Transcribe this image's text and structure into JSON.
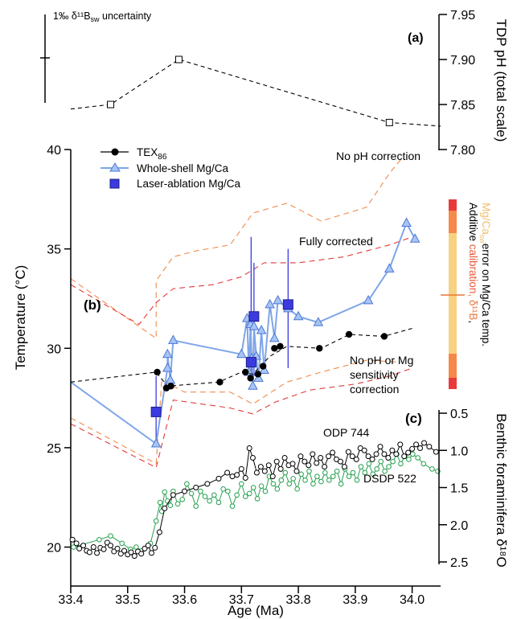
{
  "chart_data": [
    {
      "panel": "(a)",
      "type": "line",
      "ylabel": "TDP pH (total scale)",
      "ylim": [
        7.8,
        7.95
      ],
      "yticks": [
        "7.95",
        "7.90",
        "7.85",
        "7.80"
      ],
      "uncertainty_label": "1‰ δ¹¹B",
      "uncertainty_sub": "sw",
      "uncertainty_tail": " uncertainty",
      "series": [
        {
          "dash_x": [
            33.4,
            33.47,
            33.59,
            33.96,
            34.05
          ],
          "dash_y": [
            7.845,
            7.85,
            7.9,
            7.83,
            7.826
          ],
          "x": [
            33.47,
            33.59,
            33.96
          ],
          "y": [
            7.85,
            7.9,
            7.83
          ]
        }
      ]
    },
    {
      "panel": "(b)",
      "type": "line",
      "ylabel": "Temperature (°C)",
      "ylim": [
        18,
        40
      ],
      "yticks": [
        "40",
        "35",
        "30",
        "25",
        "20"
      ],
      "legend": [
        {
          "label": "TEX",
          "sub": "86",
          "color": "#000000"
        },
        {
          "label": "Whole-shell Mg/Ca",
          "sub": "",
          "color": "#7ea6e8"
        },
        {
          "label": "Laser-ablation Mg/Ca",
          "sub": "",
          "color": "#3b3be0"
        }
      ],
      "annotations": [
        {
          "text": "No pH correction",
          "color": "#e8763a"
        },
        {
          "text": "Fully corrected",
          "color": "#2222cc"
        },
        {
          "text": "No pH or Mg",
          "color": "#e03a3a"
        },
        {
          "text": "sensitivity",
          "color": "#e03a3a"
        },
        {
          "text": "correction",
          "color": "#e03a3a"
        }
      ],
      "tex86": {
        "dash_x": [
          33.4,
          33.55,
          33.57,
          33.66,
          33.7,
          33.72,
          33.75,
          33.78,
          33.84,
          33.89,
          33.95,
          34.0
        ],
        "dash_y": [
          28.3,
          28.8,
          28.1,
          28.3,
          28.8,
          28.7,
          29.6,
          30.1,
          30.0,
          30.7,
          30.6,
          31.0
        ],
        "x": [
          33.552,
          33.568,
          33.576,
          33.662,
          33.707,
          33.716,
          33.729,
          33.738,
          33.758,
          33.768,
          33.837,
          33.889,
          33.951
        ],
        "y": [
          28.8,
          28.0,
          28.1,
          28.3,
          28.8,
          28.5,
          28.7,
          29.1,
          30.0,
          30.1,
          30.0,
          30.7,
          30.6
        ]
      },
      "wholeshell": {
        "x": [
          33.4,
          33.55,
          33.57,
          33.57,
          33.575,
          33.58,
          33.7,
          33.71,
          33.713,
          33.716,
          33.718,
          33.72,
          33.722,
          33.726,
          33.73,
          33.735,
          33.74,
          33.75,
          33.758,
          33.764,
          33.782,
          33.8,
          33.835,
          33.923,
          33.96,
          33.99,
          34.005
        ],
        "y": [
          28.3,
          25.2,
          29.0,
          29.7,
          28.4,
          30.4,
          29.7,
          31.5,
          28.8,
          31.2,
          29.5,
          28.1,
          31.1,
          29.6,
          28.5,
          30.9,
          28.9,
          32.2,
          30.5,
          32.4,
          32.0,
          31.6,
          31.3,
          32.4,
          34.0,
          36.3,
          35.5
        ]
      },
      "laser": {
        "x": [
          33.55,
          33.717,
          33.722,
          33.782
        ],
        "y": [
          26.8,
          29.3,
          31.6,
          32.2
        ],
        "err": [
          [
            25.3,
            28.6
          ],
          [
            28.4,
            35.6
          ],
          [
            28.6,
            34.3
          ],
          [
            29.0,
            35.0
          ]
        ]
      },
      "band_upper_orange": [
        [
          33.4,
          33.5
        ],
        [
          33.55,
          30.5
        ],
        [
          33.55,
          33.4
        ],
        [
          33.58,
          34.6
        ],
        [
          33.62,
          34.9
        ],
        [
          33.68,
          35.2
        ],
        [
          33.72,
          36.8
        ],
        [
          33.78,
          37.3
        ],
        [
          33.84,
          36.4
        ],
        [
          33.92,
          37.1
        ],
        [
          33.96,
          38.8
        ],
        [
          33.98,
          39.5
        ]
      ],
      "band_lower_orange": [
        [
          33.4,
          26.5
        ],
        [
          33.55,
          24.2
        ],
        [
          33.56,
          28.4
        ],
        [
          33.6,
          27.8
        ],
        [
          33.68,
          27.8
        ],
        [
          33.72,
          27.2
        ],
        [
          33.78,
          28.3
        ],
        [
          33.84,
          28.8
        ],
        [
          33.92,
          29.4
        ],
        [
          33.98,
          29.3
        ]
      ],
      "band_upper_red": [
        [
          33.4,
          33.2
        ],
        [
          33.52,
          31.2
        ],
        [
          33.55,
          32.3
        ],
        [
          33.58,
          33.0
        ],
        [
          33.65,
          33.2
        ],
        [
          33.7,
          33.6
        ],
        [
          33.74,
          34.3
        ],
        [
          33.8,
          34.3
        ],
        [
          33.88,
          34.6
        ],
        [
          33.96,
          35.2
        ],
        [
          34.0,
          35.6
        ]
      ],
      "band_lower_red": [
        [
          33.4,
          26.2
        ],
        [
          33.55,
          24.0
        ],
        [
          33.58,
          27.4
        ],
        [
          33.68,
          27.0
        ],
        [
          33.72,
          26.7
        ],
        [
          33.76,
          27.3
        ],
        [
          33.82,
          27.9
        ],
        [
          33.9,
          28.2
        ],
        [
          33.96,
          28.6
        ],
        [
          34.0,
          29.0
        ]
      ],
      "error_bar_label": [
        "Additive ",
        "calibration",
        ", δ¹¹B",
        ",",
        "Mg/Ca",
        "sw",
        "error on Mg/Ca temp."
      ]
    },
    {
      "panel": "(c)",
      "type": "line",
      "ylabel": "Benthic foraminifera δ¹⁸O",
      "ylim": [
        2.5,
        0.5
      ],
      "yticks": [
        "0.5",
        "1.0",
        "1.5",
        "2.0",
        "2.5"
      ],
      "xlabel": "Age (Ma)",
      "xlim": [
        33.4,
        34.05
      ],
      "xticks": [
        "33.4",
        "33.5",
        "33.6",
        "33.7",
        "33.8",
        "33.9",
        "34.0"
      ],
      "series": [
        {
          "name": "ODP 744",
          "color": "#000000",
          "x": [
            33.403,
            33.41,
            33.415,
            33.422,
            33.428,
            33.433,
            33.44,
            33.446,
            33.452,
            33.458,
            33.464,
            33.47,
            33.476,
            33.482,
            33.488,
            33.494,
            33.5,
            33.506,
            33.512,
            33.518,
            33.524,
            33.53,
            33.536,
            33.542,
            33.548,
            33.556,
            33.565,
            33.58,
            33.6,
            33.62,
            33.64,
            33.66,
            33.675,
            33.684,
            33.692,
            33.7,
            33.707,
            33.714,
            33.72,
            33.727,
            33.734,
            33.741,
            33.748,
            33.755,
            33.762,
            33.769,
            33.776,
            33.783,
            33.79,
            33.797,
            33.804,
            33.811,
            33.818,
            33.825,
            33.832,
            33.839,
            33.846,
            33.853,
            33.86,
            33.867,
            33.874,
            33.881,
            33.888,
            33.895,
            33.902,
            33.909,
            33.916,
            33.923,
            33.93,
            33.937,
            33.944,
            33.951,
            33.958,
            33.965,
            33.972,
            33.979,
            33.986,
            33.993,
            34.0,
            34.007,
            34.014,
            34.021,
            34.03,
            34.042
          ],
          "y": [
            2.2,
            2.25,
            2.32,
            2.28,
            2.35,
            2.37,
            2.3,
            2.38,
            2.31,
            2.33,
            2.24,
            2.28,
            2.36,
            2.32,
            2.39,
            2.35,
            2.4,
            2.37,
            2.42,
            2.36,
            2.39,
            2.32,
            2.28,
            2.38,
            2.31,
            2.1,
            1.78,
            1.6,
            1.55,
            1.5,
            1.45,
            1.38,
            1.3,
            1.35,
            1.33,
            1.25,
            1.37,
            0.97,
            1.1,
            1.3,
            1.22,
            1.28,
            1.2,
            1.35,
            1.15,
            1.25,
            1.1,
            1.2,
            1.18,
            1.28,
            1.08,
            1.15,
            1.2,
            1.05,
            1.17,
            1.1,
            1.22,
            1.08,
            1.03,
            1.12,
            1.15,
            1.22,
            1.02,
            1.08,
            1.12,
            0.97,
            1.0,
            1.08,
            1.12,
            1.05,
            0.95,
            1.05,
            1.1,
            1.0,
            1.05,
            0.92,
            1.08,
            1.03,
            0.98,
            0.92,
            0.97,
            0.9,
            0.95,
            1.02
          ]
        },
        {
          "name": "DSDP 522",
          "color": "#26a150",
          "x": [
            33.405,
            33.45,
            33.47,
            33.49,
            33.505,
            33.515,
            33.525,
            33.54,
            33.55,
            33.557,
            33.56,
            33.565,
            33.57,
            33.575,
            33.58,
            33.588,
            33.596,
            33.604,
            33.612,
            33.62,
            33.628,
            33.636,
            33.644,
            33.652,
            33.66,
            33.668,
            33.676,
            33.684,
            33.692,
            33.7,
            33.707,
            33.714,
            33.721,
            33.728,
            33.735,
            33.742,
            33.749,
            33.756,
            33.763,
            33.77,
            33.777,
            33.784,
            33.791,
            33.798,
            33.805,
            33.812,
            33.819,
            33.826,
            33.833,
            33.84,
            33.847,
            33.854,
            33.861,
            33.868,
            33.875,
            33.882,
            33.889,
            33.896,
            33.903,
            33.91,
            33.917,
            33.924,
            33.931,
            33.938,
            33.945,
            33.952,
            33.959,
            33.966,
            33.973,
            33.98,
            33.987,
            33.994,
            34.001,
            34.01,
            34.02,
            34.035,
            34.045
          ],
          "y": [
            2.3,
            2.2,
            2.15,
            2.25,
            2.33,
            2.3,
            2.35,
            2.25,
            1.95,
            1.7,
            1.82,
            1.56,
            1.68,
            1.74,
            1.55,
            1.72,
            1.66,
            1.45,
            1.58,
            1.75,
            1.55,
            1.62,
            1.68,
            1.6,
            1.7,
            1.52,
            1.55,
            1.75,
            1.6,
            1.45,
            1.62,
            1.58,
            1.5,
            1.65,
            1.48,
            1.55,
            1.35,
            1.45,
            1.52,
            1.4,
            1.3,
            1.45,
            1.38,
            1.52,
            1.32,
            1.4,
            1.28,
            1.45,
            1.35,
            1.42,
            1.3,
            1.4,
            1.35,
            1.28,
            1.45,
            1.25,
            1.35,
            1.3,
            1.4,
            1.22,
            1.3,
            1.18,
            1.32,
            1.25,
            1.15,
            1.28,
            1.22,
            1.15,
            1.05,
            1.18,
            1.08,
            1.12,
            1.05,
            1.1,
            1.18,
            1.25,
            1.28
          ]
        }
      ]
    }
  ]
}
